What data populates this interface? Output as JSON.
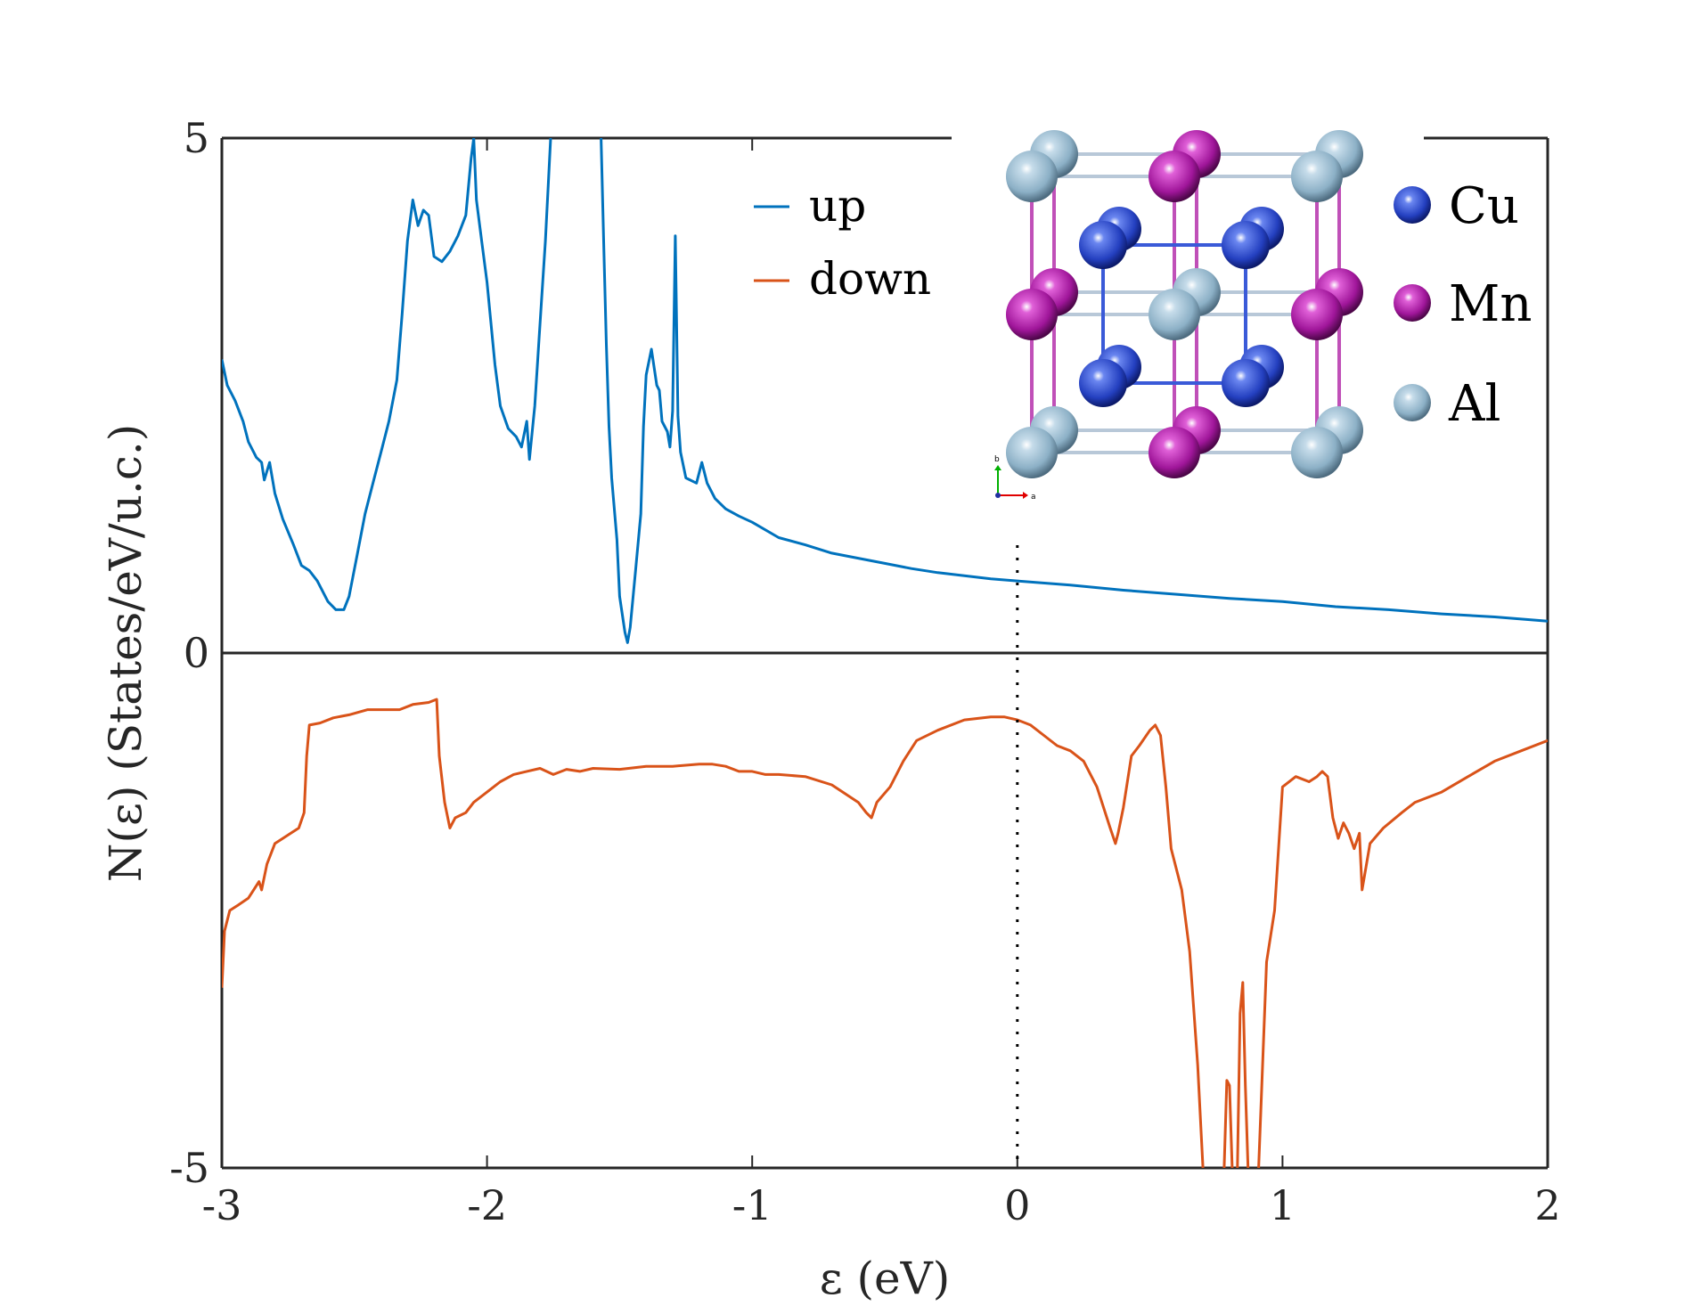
{
  "chart_data": {
    "type": "line",
    "xlabel": "ε (eV)",
    "ylabel": "N(ε) (States/eV/u.c.)",
    "xlim": [
      -3,
      2
    ],
    "ylim": [
      -5,
      5
    ],
    "xticks": [
      "-3",
      "-2",
      "-1",
      "0",
      "1",
      "2"
    ],
    "yticks": [
      "-5",
      "0",
      "5"
    ],
    "fermi_level": 0,
    "series": [
      {
        "name": "up",
        "color": "#0072BD",
        "points": [
          [
            -3.0,
            2.85
          ],
          [
            -2.98,
            2.6
          ],
          [
            -2.95,
            2.45
          ],
          [
            -2.92,
            2.25
          ],
          [
            -2.9,
            2.05
          ],
          [
            -2.87,
            1.9
          ],
          [
            -2.85,
            1.85
          ],
          [
            -2.84,
            1.68
          ],
          [
            -2.82,
            1.85
          ],
          [
            -2.8,
            1.55
          ],
          [
            -2.77,
            1.3
          ],
          [
            -2.73,
            1.05
          ],
          [
            -2.7,
            0.85
          ],
          [
            -2.67,
            0.8
          ],
          [
            -2.64,
            0.7
          ],
          [
            -2.6,
            0.5
          ],
          [
            -2.57,
            0.42
          ],
          [
            -2.54,
            0.42
          ],
          [
            -2.52,
            0.55
          ],
          [
            -2.49,
            0.95
          ],
          [
            -2.46,
            1.35
          ],
          [
            -2.43,
            1.65
          ],
          [
            -2.4,
            1.95
          ],
          [
            -2.37,
            2.25
          ],
          [
            -2.34,
            2.65
          ],
          [
            -2.32,
            3.3
          ],
          [
            -2.3,
            4.0
          ],
          [
            -2.28,
            4.4
          ],
          [
            -2.26,
            4.15
          ],
          [
            -2.24,
            4.3
          ],
          [
            -2.22,
            4.25
          ],
          [
            -2.2,
            3.85
          ],
          [
            -2.17,
            3.8
          ],
          [
            -2.14,
            3.9
          ],
          [
            -2.11,
            4.05
          ],
          [
            -2.08,
            4.25
          ],
          [
            -2.06,
            4.8
          ],
          [
            -2.05,
            5.0
          ],
          [
            -2.04,
            4.4
          ],
          [
            -2.02,
            4.0
          ],
          [
            -2.0,
            3.6
          ],
          [
            -1.97,
            2.8
          ],
          [
            -1.95,
            2.4
          ],
          [
            -1.92,
            2.18
          ],
          [
            -1.89,
            2.1
          ],
          [
            -1.87,
            2.0
          ],
          [
            -1.85,
            2.25
          ],
          [
            -1.84,
            1.88
          ],
          [
            -1.82,
            2.4
          ],
          [
            -1.8,
            3.2
          ],
          [
            -1.78,
            4.0
          ],
          [
            -1.76,
            5.0
          ],
          [
            null,
            null
          ],
          [
            -1.57,
            5.0
          ],
          [
            -1.56,
            4.0
          ],
          [
            -1.55,
            3.0
          ],
          [
            -1.54,
            2.2
          ],
          [
            -1.53,
            1.7
          ],
          [
            -1.51,
            1.1
          ],
          [
            -1.5,
            0.55
          ],
          [
            -1.48,
            0.2
          ],
          [
            -1.47,
            0.1
          ],
          [
            -1.46,
            0.25
          ],
          [
            -1.44,
            0.8
          ],
          [
            -1.42,
            1.35
          ],
          [
            -1.41,
            2.2
          ],
          [
            -1.4,
            2.7
          ],
          [
            -1.38,
            2.95
          ],
          [
            -1.36,
            2.6
          ],
          [
            -1.35,
            2.55
          ],
          [
            -1.34,
            2.25
          ],
          [
            -1.32,
            2.15
          ],
          [
            -1.31,
            2.0
          ],
          [
            -1.3,
            2.35
          ],
          [
            -1.29,
            4.05
          ],
          [
            -1.28,
            2.3
          ],
          [
            -1.27,
            1.95
          ],
          [
            -1.25,
            1.7
          ],
          [
            -1.21,
            1.65
          ],
          [
            -1.19,
            1.85
          ],
          [
            -1.17,
            1.65
          ],
          [
            -1.14,
            1.5
          ],
          [
            -1.1,
            1.4
          ],
          [
            -1.05,
            1.33
          ],
          [
            -1.0,
            1.27
          ],
          [
            -0.9,
            1.12
          ],
          [
            -0.8,
            1.05
          ],
          [
            -0.7,
            0.97
          ],
          [
            -0.6,
            0.92
          ],
          [
            -0.5,
            0.87
          ],
          [
            -0.4,
            0.82
          ],
          [
            -0.3,
            0.78
          ],
          [
            -0.2,
            0.75
          ],
          [
            -0.1,
            0.72
          ],
          [
            0.0,
            0.7
          ],
          [
            0.2,
            0.66
          ],
          [
            0.4,
            0.61
          ],
          [
            0.6,
            0.57
          ],
          [
            0.8,
            0.53
          ],
          [
            1.0,
            0.5
          ],
          [
            1.2,
            0.45
          ],
          [
            1.4,
            0.42
          ],
          [
            1.6,
            0.38
          ],
          [
            1.8,
            0.35
          ],
          [
            2.0,
            0.31
          ]
        ]
      },
      {
        "name": "down",
        "color": "#D95319",
        "points": [
          [
            -3.0,
            -3.25
          ],
          [
            -2.99,
            -2.7
          ],
          [
            -2.97,
            -2.5
          ],
          [
            -2.94,
            -2.45
          ],
          [
            -2.9,
            -2.38
          ],
          [
            -2.88,
            -2.3
          ],
          [
            -2.86,
            -2.22
          ],
          [
            -2.85,
            -2.3
          ],
          [
            -2.83,
            -2.05
          ],
          [
            -2.8,
            -1.85
          ],
          [
            -2.77,
            -1.8
          ],
          [
            -2.74,
            -1.75
          ],
          [
            -2.71,
            -1.7
          ],
          [
            -2.69,
            -1.55
          ],
          [
            -2.68,
            -1.0
          ],
          [
            -2.67,
            -0.7
          ],
          [
            -2.63,
            -0.68
          ],
          [
            -2.58,
            -0.63
          ],
          [
            -2.52,
            -0.6
          ],
          [
            -2.45,
            -0.55
          ],
          [
            -2.38,
            -0.55
          ],
          [
            -2.33,
            -0.55
          ],
          [
            -2.28,
            -0.5
          ],
          [
            -2.22,
            -0.48
          ],
          [
            -2.19,
            -0.45
          ],
          [
            -2.18,
            -1.0
          ],
          [
            -2.16,
            -1.45
          ],
          [
            -2.14,
            -1.7
          ],
          [
            -2.12,
            -1.6
          ],
          [
            -2.08,
            -1.55
          ],
          [
            -2.05,
            -1.45
          ],
          [
            -2.0,
            -1.35
          ],
          [
            -1.95,
            -1.25
          ],
          [
            -1.9,
            -1.18
          ],
          [
            -1.85,
            -1.15
          ],
          [
            -1.8,
            -1.12
          ],
          [
            -1.75,
            -1.18
          ],
          [
            -1.7,
            -1.13
          ],
          [
            -1.65,
            -1.15
          ],
          [
            -1.6,
            -1.12
          ],
          [
            -1.5,
            -1.13
          ],
          [
            -1.4,
            -1.1
          ],
          [
            -1.3,
            -1.1
          ],
          [
            -1.2,
            -1.08
          ],
          [
            -1.15,
            -1.08
          ],
          [
            -1.1,
            -1.1
          ],
          [
            -1.05,
            -1.15
          ],
          [
            -1.0,
            -1.15
          ],
          [
            -0.95,
            -1.18
          ],
          [
            -0.9,
            -1.18
          ],
          [
            -0.8,
            -1.2
          ],
          [
            -0.7,
            -1.28
          ],
          [
            -0.6,
            -1.45
          ],
          [
            -0.57,
            -1.55
          ],
          [
            -0.55,
            -1.6
          ],
          [
            -0.53,
            -1.45
          ],
          [
            -0.48,
            -1.3
          ],
          [
            -0.43,
            -1.05
          ],
          [
            -0.38,
            -0.85
          ],
          [
            -0.3,
            -0.75
          ],
          [
            -0.2,
            -0.65
          ],
          [
            -0.1,
            -0.62
          ],
          [
            -0.05,
            -0.62
          ],
          [
            0.0,
            -0.65
          ],
          [
            0.05,
            -0.7
          ],
          [
            0.1,
            -0.8
          ],
          [
            0.15,
            -0.9
          ],
          [
            0.2,
            -0.95
          ],
          [
            0.25,
            -1.05
          ],
          [
            0.3,
            -1.3
          ],
          [
            0.35,
            -1.7
          ],
          [
            0.37,
            -1.85
          ],
          [
            0.38,
            -1.75
          ],
          [
            0.4,
            -1.5
          ],
          [
            0.43,
            -1.0
          ],
          [
            0.46,
            -0.9
          ],
          [
            0.5,
            -0.75
          ],
          [
            0.52,
            -0.7
          ],
          [
            0.54,
            -0.8
          ],
          [
            0.56,
            -1.3
          ],
          [
            0.58,
            -1.9
          ],
          [
            0.62,
            -2.3
          ],
          [
            0.65,
            -2.9
          ],
          [
            0.68,
            -4.0
          ],
          [
            0.7,
            -5.0
          ],
          [
            null,
            null
          ],
          [
            0.78,
            -5.0
          ],
          [
            0.79,
            -4.15
          ],
          [
            0.8,
            -4.2
          ],
          [
            0.81,
            -5.0
          ],
          [
            null,
            null
          ],
          [
            0.83,
            -5.0
          ],
          [
            0.84,
            -3.5
          ],
          [
            0.85,
            -3.2
          ],
          [
            0.86,
            -4.2
          ],
          [
            0.87,
            -5.0
          ],
          [
            null,
            null
          ],
          [
            0.91,
            -5.0
          ],
          [
            0.94,
            -3.0
          ],
          [
            0.97,
            -2.5
          ],
          [
            1.0,
            -1.3
          ],
          [
            1.05,
            -1.2
          ],
          [
            1.1,
            -1.25
          ],
          [
            1.13,
            -1.2
          ],
          [
            1.15,
            -1.15
          ],
          [
            1.17,
            -1.2
          ],
          [
            1.19,
            -1.6
          ],
          [
            1.21,
            -1.8
          ],
          [
            1.23,
            -1.65
          ],
          [
            1.25,
            -1.75
          ],
          [
            1.27,
            -1.9
          ],
          [
            1.29,
            -1.75
          ],
          [
            1.3,
            -2.3
          ],
          [
            1.31,
            -2.15
          ],
          [
            1.33,
            -1.85
          ],
          [
            1.38,
            -1.7
          ],
          [
            1.45,
            -1.55
          ],
          [
            1.5,
            -1.45
          ],
          [
            1.6,
            -1.35
          ],
          [
            1.7,
            -1.2
          ],
          [
            1.8,
            -1.05
          ],
          [
            1.9,
            -0.95
          ],
          [
            2.0,
            -0.85
          ]
        ]
      }
    ],
    "inset": {
      "legend": [
        "Cu",
        "Mn",
        "Al"
      ],
      "colors": {
        "Cu": "#2846c8",
        "Mn": "#a0189a",
        "Al": "#8fb4c8"
      },
      "axis_labels": [
        "b",
        "a"
      ]
    }
  }
}
